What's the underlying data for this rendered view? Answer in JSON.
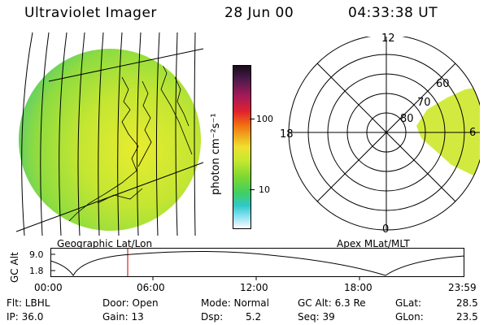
{
  "header": {
    "instrument": "Ultraviolet Imager",
    "date": "28 Jun 00",
    "time": "04:33:38 UT"
  },
  "colorbar": {
    "unit_label": "photon cm⁻²s⁻¹",
    "ticks": [
      "100",
      "10"
    ],
    "colors": [
      "#1a0a1a",
      "#4a1a4a",
      "#a01a5a",
      "#e02030",
      "#f06a10",
      "#f0b020",
      "#f0e030",
      "#c8e830",
      "#80d830",
      "#40d060",
      "#30c8c8",
      "#80e0f0",
      "#d0f0f8",
      "#ffffff"
    ]
  },
  "left_panel": {
    "label": "Geographic Lat/Lon"
  },
  "right_panel": {
    "label": "Apex MLat/MLT",
    "mlt_labels": {
      "top": "12",
      "left": "18",
      "right": "6",
      "bottom": "0"
    },
    "mlat_labels": [
      "60",
      "70",
      "80"
    ]
  },
  "altitude_plot": {
    "ylabel": "GC Alt",
    "y_ticks": [
      "9.0",
      "1.8"
    ],
    "x_ticks": [
      "00:00",
      "06:00",
      "12:00",
      "18:00",
      "23:59"
    ],
    "marker_color": "#e02020"
  },
  "footer": {
    "filter": "Flt: LBHL",
    "ip": "IP: 36.0",
    "door": "Door: Open",
    "gain": "Gain: 13",
    "mode": "Mode: Normal",
    "dsp_label": "Dsp:",
    "dsp_value": "5.2",
    "gc_alt": "GC Alt: 6.3 Re",
    "seq": "Seq: 39",
    "glat_label": "GLat:",
    "glat_value": "28.5",
    "glon_label": "GLon:",
    "glon_value": "23.5"
  }
}
